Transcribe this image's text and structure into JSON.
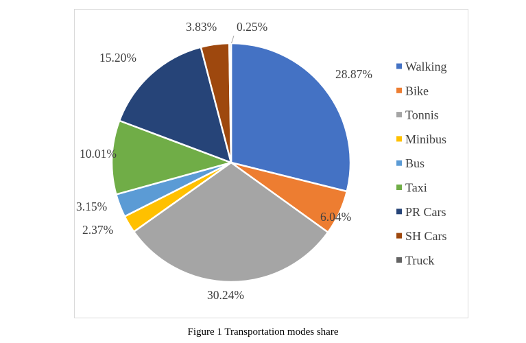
{
  "caption": "Figure 1 Transportation modes share",
  "chart_data": {
    "type": "pie",
    "title": "",
    "start_angle_deg": 0,
    "direction": "clockwise",
    "legend_position": "right",
    "slices": [
      {
        "label": "Walking",
        "value": 28.87,
        "display": "28.87%",
        "color": "#4472C4"
      },
      {
        "label": "Bike",
        "value": 6.04,
        "display": "6.04%",
        "color": "#ED7D31"
      },
      {
        "label": "Tonnis",
        "value": 30.24,
        "display": "30.24%",
        "color": "#A5A5A5"
      },
      {
        "label": "Minibus",
        "value": 2.37,
        "display": "2.37%",
        "color": "#FFC000"
      },
      {
        "label": "Bus",
        "value": 3.15,
        "display": "3.15%",
        "color": "#5B9BD5"
      },
      {
        "label": "Taxi",
        "value": 10.01,
        "display": "10.01%",
        "color": "#70AD47"
      },
      {
        "label": "PR Cars",
        "value": 15.2,
        "display": "15.20%",
        "color": "#264478"
      },
      {
        "label": "SH Cars",
        "value": 3.83,
        "display": "3.83%",
        "color": "#9E480E"
      },
      {
        "label": "Truck",
        "value": 0.25,
        "display": "0.25%",
        "color": "#636363"
      }
    ]
  }
}
